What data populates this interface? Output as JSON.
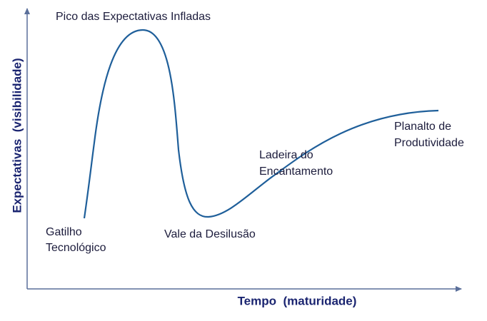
{
  "axes": {
    "y_label": "Expectativas  (visibilidade)",
    "x_label": "Tempo  (maturidade)"
  },
  "phases": [
    {
      "lines": [
        "Gatilho",
        "Tecnológico"
      ]
    },
    {
      "lines": [
        "Pico das Expectativas Infladas"
      ]
    },
    {
      "lines": [
        "Vale da Desilusão"
      ]
    },
    {
      "lines": [
        "Ladeira do",
        "Encantamento"
      ]
    },
    {
      "lines": [
        "Planalto de",
        "Produtividade"
      ]
    }
  ]
}
